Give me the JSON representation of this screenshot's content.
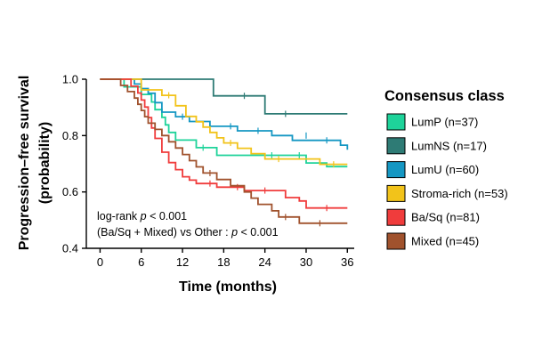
{
  "chart_data": {
    "type": "line",
    "step": true,
    "title": "",
    "xlabel": "Time (months)",
    "ylabel_lines": [
      "Progression–free survival",
      "(probability)"
    ],
    "xlim": [
      -2,
      37
    ],
    "ylim": [
      0.4,
      1.0
    ],
    "xticks": [
      0,
      6,
      12,
      18,
      24,
      30,
      36
    ],
    "yticks": [
      0.4,
      0.6,
      0.8,
      1.0
    ],
    "ytick_labels": [
      "0.4",
      "0.6",
      "0.8",
      "1.0"
    ],
    "grid": false,
    "legend": {
      "title": "Consensus class",
      "position": "right"
    },
    "annotations": {
      "line1_prefix": "log-rank ",
      "line1_p": "p",
      "line1_suffix": " < 0.001",
      "line2_prefix": "(Ba/Sq + Mixed) vs Other : ",
      "line2_p": "p",
      "line2_suffix": " < 0.001"
    },
    "series": [
      {
        "name": "LumP (n=37)",
        "color": "#1ed39a",
        "points": [
          [
            0,
            1.0
          ],
          [
            3.5,
            0.973
          ],
          [
            6,
            0.946
          ],
          [
            7.5,
            0.919
          ],
          [
            8,
            0.892
          ],
          [
            9,
            0.865
          ],
          [
            9.5,
            0.838
          ],
          [
            10,
            0.811
          ],
          [
            11,
            0.784
          ],
          [
            14,
            0.757
          ],
          [
            17,
            0.73
          ],
          [
            24,
            0.73
          ],
          [
            30,
            0.703
          ],
          [
            31,
            0.703
          ],
          [
            33,
            0.69
          ],
          [
            36,
            0.69
          ]
        ],
        "censored": [
          [
            15,
            0.757
          ],
          [
            25,
            0.73
          ],
          [
            29,
            0.73
          ]
        ]
      },
      {
        "name": "LumNS (n=17)",
        "color": "#2e7b75",
        "points": [
          [
            0,
            1.0
          ],
          [
            16.5,
            0.941
          ],
          [
            24,
            0.877
          ],
          [
            36,
            0.877
          ]
        ],
        "censored": [
          [
            21,
            0.941
          ],
          [
            27,
            0.877
          ]
        ]
      },
      {
        "name": "LumU (n=60)",
        "color": "#1597c3",
        "points": [
          [
            0,
            1.0
          ],
          [
            5,
            0.983
          ],
          [
            6,
            0.967
          ],
          [
            7,
            0.95
          ],
          [
            8,
            0.917
          ],
          [
            9,
            0.883
          ],
          [
            11,
            0.867
          ],
          [
            13,
            0.85
          ],
          [
            16,
            0.833
          ],
          [
            20,
            0.817
          ],
          [
            25,
            0.8
          ],
          [
            28,
            0.783
          ],
          [
            32,
            0.783
          ],
          [
            35,
            0.766
          ],
          [
            36,
            0.75
          ]
        ],
        "censored": [
          [
            12,
            0.867
          ],
          [
            19,
            0.833
          ],
          [
            23,
            0.817
          ],
          [
            30,
            0.8
          ],
          [
            33,
            0.783
          ]
        ]
      },
      {
        "name": "Stroma-rich (n=53)",
        "color": "#f2c31a",
        "points": [
          [
            0,
            1.0
          ],
          [
            6,
            0.962
          ],
          [
            9,
            0.943
          ],
          [
            11,
            0.906
          ],
          [
            12.5,
            0.868
          ],
          [
            14,
            0.849
          ],
          [
            15,
            0.83
          ],
          [
            16,
            0.811
          ],
          [
            17,
            0.792
          ],
          [
            18,
            0.774
          ],
          [
            20,
            0.755
          ],
          [
            22,
            0.736
          ],
          [
            24,
            0.717
          ],
          [
            31,
            0.717
          ],
          [
            32,
            0.698
          ],
          [
            36,
            0.698
          ]
        ],
        "censored": [
          [
            10,
            0.943
          ],
          [
            19,
            0.774
          ],
          [
            26,
            0.717
          ],
          [
            34,
            0.698
          ]
        ]
      },
      {
        "name": "Ba/Sq (n=81)",
        "color": "#f03c3c",
        "points": [
          [
            0,
            1.0
          ],
          [
            4.5,
            0.975
          ],
          [
            5.5,
            0.951
          ],
          [
            6,
            0.926
          ],
          [
            6.5,
            0.901
          ],
          [
            7,
            0.864
          ],
          [
            7.5,
            0.827
          ],
          [
            8,
            0.79
          ],
          [
            9,
            0.741
          ],
          [
            10,
            0.704
          ],
          [
            11,
            0.679
          ],
          [
            12,
            0.654
          ],
          [
            13,
            0.642
          ],
          [
            14,
            0.63
          ],
          [
            17,
            0.617
          ],
          [
            21,
            0.605
          ],
          [
            27,
            0.58
          ],
          [
            29,
            0.568
          ],
          [
            30,
            0.543
          ],
          [
            36,
            0.543
          ]
        ],
        "censored": [
          [
            16,
            0.63
          ],
          [
            20,
            0.617
          ],
          [
            24,
            0.605
          ],
          [
            33,
            0.543
          ]
        ]
      },
      {
        "name": "Mixed (n=45)",
        "color": "#a0522d",
        "points": [
          [
            0,
            1.0
          ],
          [
            3,
            0.978
          ],
          [
            4,
            0.956
          ],
          [
            5,
            0.933
          ],
          [
            5.5,
            0.911
          ],
          [
            6,
            0.889
          ],
          [
            6.5,
            0.867
          ],
          [
            7,
            0.844
          ],
          [
            8,
            0.822
          ],
          [
            9,
            0.8
          ],
          [
            10,
            0.778
          ],
          [
            11,
            0.756
          ],
          [
            12,
            0.733
          ],
          [
            13,
            0.711
          ],
          [
            14,
            0.689
          ],
          [
            15,
            0.667
          ],
          [
            17,
            0.644
          ],
          [
            19,
            0.622
          ],
          [
            21,
            0.6
          ],
          [
            22,
            0.578
          ],
          [
            23,
            0.556
          ],
          [
            25,
            0.533
          ],
          [
            26,
            0.511
          ],
          [
            29,
            0.489
          ],
          [
            36,
            0.489
          ]
        ],
        "censored": [
          [
            16,
            0.667
          ],
          [
            27,
            0.511
          ],
          [
            32,
            0.489
          ]
        ]
      }
    ]
  }
}
